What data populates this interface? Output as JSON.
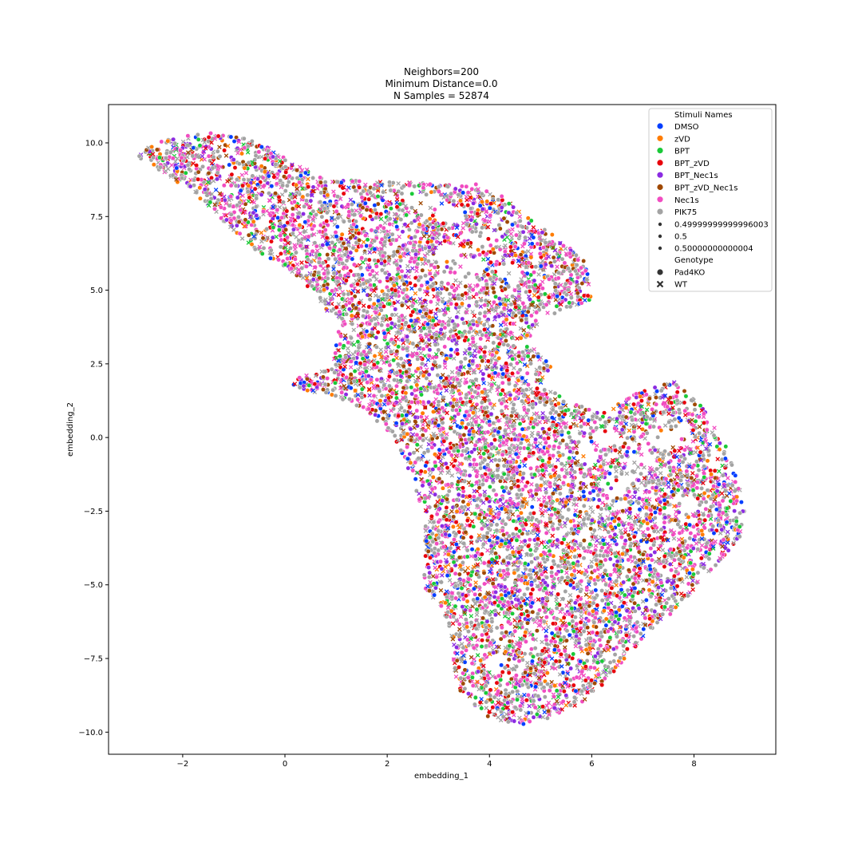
{
  "chart_data": {
    "type": "scatter",
    "title_lines": [
      "Neighbors=200",
      "Minimum Distance=0.0",
      "N Samples = 52874"
    ],
    "xlabel": "embedding_1",
    "ylabel": "embedding_2",
    "xlim": [
      -3.45,
      9.6
    ],
    "ylim": [
      -10.75,
      11.3
    ],
    "xticks": [
      -2,
      0,
      2,
      4,
      6,
      8
    ],
    "xtick_labels": [
      "−2",
      "0",
      "2",
      "4",
      "6",
      "8"
    ],
    "yticks": [
      10.0,
      7.5,
      5.0,
      2.5,
      0.0,
      -2.5,
      -5.0,
      -7.5,
      -10.0
    ],
    "ytick_labels": [
      "10.0",
      "7.5",
      "5.0",
      "2.5",
      "0.0",
      "−2.5",
      "−5.0",
      "−7.5",
      "−10.0"
    ],
    "legend_position": "top-right",
    "legend": {
      "hue_title": "Stimuli Names",
      "hue_entries": [
        {
          "name": "DMSO",
          "color": "#023eff"
        },
        {
          "name": "zVD",
          "color": "#ff7c00"
        },
        {
          "name": "BPT",
          "color": "#1ac938"
        },
        {
          "name": "BPT_zVD",
          "color": "#e8000b"
        },
        {
          "name": "BPT_Nec1s",
          "color": "#8b2be2"
        },
        {
          "name": "BPT_zVD_Nec1s",
          "color": "#9f4800"
        },
        {
          "name": "Nec1s",
          "color": "#f14cc1"
        },
        {
          "name": "PIK75",
          "color": "#a3a3a3"
        }
      ],
      "size_entries": [
        "0.49999999999996003",
        "0.5",
        "0.50000000000004"
      ],
      "style_title": "Genotype",
      "style_entries": [
        {
          "name": "Pad4KO",
          "marker": "circle"
        },
        {
          "name": "WT",
          "marker": "x"
        }
      ]
    },
    "n_samples": 52874,
    "cloud_outline": [
      [
        -2.9,
        9.6
      ],
      [
        -2.6,
        9.95
      ],
      [
        -2.2,
        10.2
      ],
      [
        -1.6,
        10.35
      ],
      [
        -1.0,
        10.3
      ],
      [
        -0.4,
        9.9
      ],
      [
        0.2,
        9.3
      ],
      [
        0.8,
        8.8
      ],
      [
        1.5,
        8.7
      ],
      [
        2.2,
        8.7
      ],
      [
        3.0,
        8.6
      ],
      [
        3.8,
        8.6
      ],
      [
        4.3,
        8.2
      ],
      [
        4.8,
        7.4
      ],
      [
        5.4,
        6.7
      ],
      [
        5.9,
        5.9
      ],
      [
        6.0,
        4.7
      ],
      [
        5.5,
        4.3
      ],
      [
        5.0,
        4.1
      ],
      [
        4.8,
        3.3
      ],
      [
        5.2,
        2.4
      ],
      [
        5.0,
        1.8
      ],
      [
        5.6,
        1.2
      ],
      [
        6.2,
        0.8
      ],
      [
        6.8,
        1.5
      ],
      [
        7.6,
        1.9
      ],
      [
        8.2,
        1.0
      ],
      [
        8.7,
        -0.5
      ],
      [
        9.0,
        -2.4
      ],
      [
        8.9,
        -3.5
      ],
      [
        8.2,
        -4.8
      ],
      [
        7.6,
        -5.9
      ],
      [
        7.1,
        -6.7
      ],
      [
        6.6,
        -7.6
      ],
      [
        6.0,
        -8.8
      ],
      [
        5.4,
        -9.4
      ],
      [
        4.7,
        -9.8
      ],
      [
        4.0,
        -9.5
      ],
      [
        3.5,
        -8.9
      ],
      [
        3.3,
        -8.0
      ],
      [
        3.3,
        -7.0
      ],
      [
        3.1,
        -6.0
      ],
      [
        2.7,
        -5.0
      ],
      [
        2.75,
        -3.8
      ],
      [
        2.7,
        -2.6
      ],
      [
        2.5,
        -1.5
      ],
      [
        2.3,
        -0.6
      ],
      [
        2.0,
        0.2
      ],
      [
        1.6,
        0.9
      ],
      [
        1.0,
        1.4
      ],
      [
        0.5,
        1.5
      ],
      [
        0.1,
        1.7
      ],
      [
        0.3,
        2.1
      ],
      [
        0.9,
        2.3
      ],
      [
        1.0,
        3.0
      ],
      [
        1.0,
        3.9
      ],
      [
        0.6,
        4.8
      ],
      [
        0.1,
        5.6
      ],
      [
        -0.6,
        6.4
      ],
      [
        -1.2,
        7.3
      ],
      [
        -1.8,
        8.3
      ],
      [
        -2.4,
        9.0
      ],
      [
        -2.8,
        9.4
      ]
    ],
    "gaps": [
      [
        2.5,
        8.2
      ],
      [
        3.2,
        7.6
      ],
      [
        3.9,
        6.8
      ],
      [
        3.6,
        5.8
      ],
      [
        2.9,
        7.9
      ],
      [
        3.2,
        6.3
      ],
      [
        3.4,
        5.5
      ],
      [
        4.4,
        5.6
      ],
      [
        7.3,
        -0.1
      ],
      [
        7.0,
        -0.9
      ],
      [
        5.9,
        -0.5
      ],
      [
        6.5,
        -1.7
      ],
      [
        7.8,
        -2.2
      ],
      [
        4.2,
        -7.6
      ],
      [
        6.3,
        0.0
      ],
      [
        7.7,
        0.0
      ]
    ]
  }
}
